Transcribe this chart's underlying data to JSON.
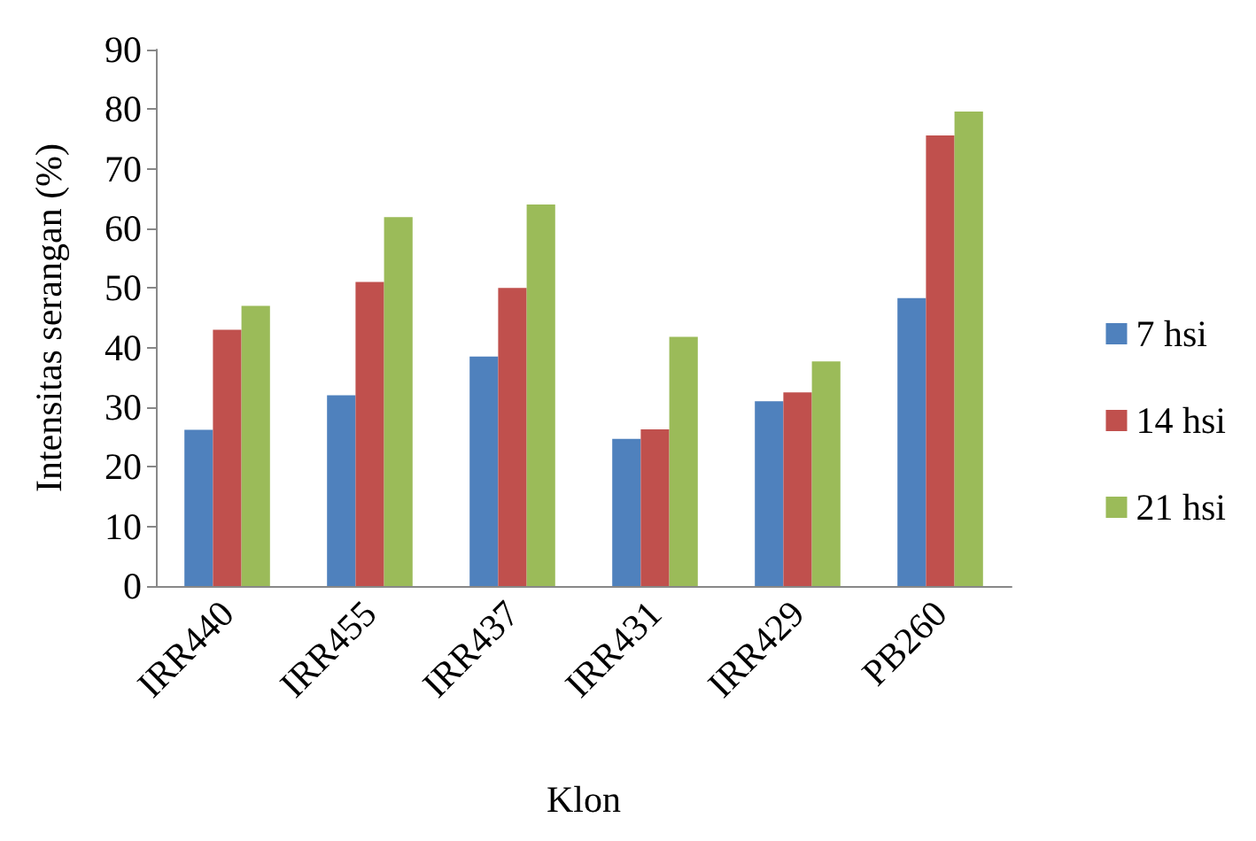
{
  "chart_data": {
    "type": "bar",
    "xlabel": "Klon",
    "ylabel": "Intensitas serangan (%)",
    "categories": [
      "IRR440",
      "IRR455",
      "IRR437",
      "IRR431",
      "IRR429",
      "PB260"
    ],
    "series": [
      {
        "name": "7 hsi",
        "color": "#4f81bd",
        "values": [
          26.2,
          32,
          38.5,
          24.7,
          31,
          48.3
        ]
      },
      {
        "name": "14 hsi",
        "color": "#c0504d",
        "values": [
          43,
          51,
          50,
          26.3,
          32.5,
          75.6
        ]
      },
      {
        "name": "21 hsi",
        "color": "#9bbb59",
        "values": [
          47,
          61.9,
          64,
          41.8,
          37.7,
          79.6
        ]
      }
    ],
    "ylim": [
      0,
      90
    ],
    "yticks": [
      0,
      10,
      20,
      30,
      40,
      50,
      60,
      70,
      80,
      90
    ],
    "grid": false,
    "legend": "right"
  }
}
